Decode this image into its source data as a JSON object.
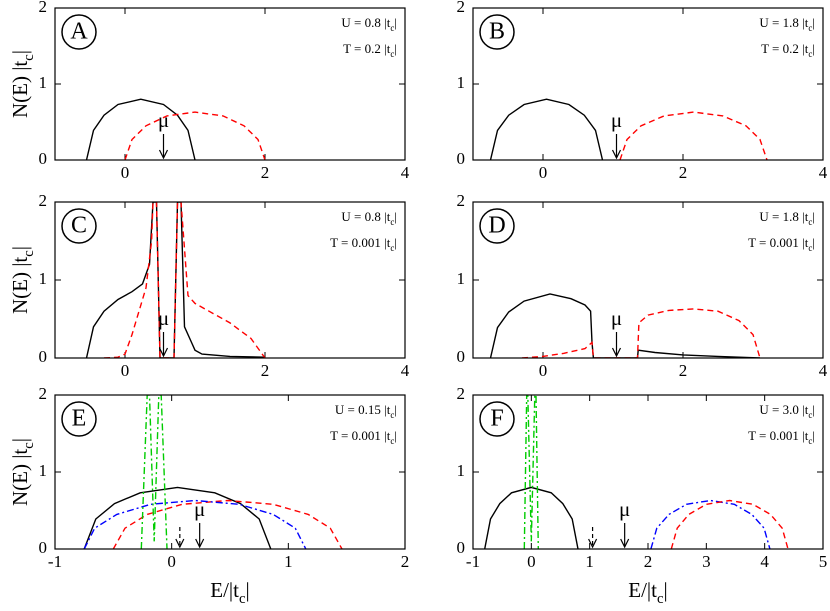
{
  "chart_data": [
    {
      "type": "line",
      "panel": "A",
      "xlim": [
        -1,
        4
      ],
      "xticks": [
        0,
        2,
        4
      ],
      "ylim": [
        0,
        2
      ],
      "yticks": [
        0,
        1,
        2
      ],
      "ylabel": {
        "text": "N(E) |t",
        "sub": "c",
        "end": "|"
      },
      "annotations": [
        {
          "text": "U = 0.8 |t",
          "sub": "c",
          "end": "|"
        },
        {
          "text": "T = 0.2 |t",
          "sub": "c",
          "end": "|"
        }
      ],
      "arrows": [
        0.55
      ],
      "mu_label": "μ",
      "series": [
        {
          "color": "#000000",
          "dash": "solid",
          "x": [
            -0.55,
            -0.45,
            -0.3,
            -0.1,
            0.225,
            0.55,
            0.75,
            0.9,
            1.0
          ],
          "values": [
            0,
            0.39,
            0.59,
            0.73,
            0.8,
            0.73,
            0.59,
            0.39,
            0
          ]
        },
        {
          "color": "#ff0000",
          "dash": "dashed",
          "x": [
            0,
            0.1,
            0.3,
            0.6,
            1.0,
            1.4,
            1.7,
            1.9,
            2.0
          ],
          "values": [
            0,
            0.27,
            0.45,
            0.58,
            0.63,
            0.58,
            0.45,
            0.27,
            0
          ]
        }
      ]
    },
    {
      "type": "line",
      "panel": "B",
      "xlim": [
        -1,
        4
      ],
      "xticks": [
        0,
        2,
        4
      ],
      "ylim": [
        0,
        2
      ],
      "yticks": [
        0,
        1,
        2
      ],
      "annotations": [
        {
          "text": "U = 1.8 |t",
          "sub": "c",
          "end": "|"
        },
        {
          "text": "T = 0.2 |t",
          "sub": "c",
          "end": "|"
        }
      ],
      "arrows": [
        1.05
      ],
      "mu_label": "μ",
      "series": [
        {
          "color": "#000000",
          "dash": "solid",
          "x": [
            -0.75,
            -0.65,
            -0.49,
            -0.27,
            0.05,
            0.37,
            0.59,
            0.75,
            0.85
          ],
          "values": [
            0,
            0.39,
            0.59,
            0.73,
            0.8,
            0.73,
            0.59,
            0.39,
            0
          ]
        },
        {
          "color": "#ff0000",
          "dash": "dashed",
          "x": [
            1.1,
            1.2,
            1.4,
            1.73,
            2.15,
            2.57,
            2.9,
            3.1,
            3.2
          ],
          "values": [
            0,
            0.27,
            0.45,
            0.58,
            0.63,
            0.58,
            0.45,
            0.27,
            0
          ]
        }
      ]
    },
    {
      "type": "line",
      "panel": "C",
      "xlim": [
        -1,
        4
      ],
      "xticks": [
        0,
        2,
        4
      ],
      "ylim": [
        0,
        2
      ],
      "yticks": [
        0,
        1,
        2
      ],
      "ylabel": {
        "text": "N(E) |t",
        "sub": "c",
        "end": "|"
      },
      "annotations": [
        {
          "text": "U = 0.8 |t",
          "sub": "c",
          "end": "|"
        },
        {
          "text": "T = 0.001 |t",
          "sub": "c",
          "end": "|"
        }
      ],
      "arrows": [
        0.55
      ],
      "mu_label": "μ",
      "series": [
        {
          "color": "#000000",
          "dash": "solid",
          "x": [
            -0.55,
            -0.45,
            -0.3,
            -0.1,
            0.1,
            0.25,
            0.35,
            0.4,
            0.45,
            0.5,
            0.7,
            0.75,
            0.8,
            0.85,
            0.95,
            1.0,
            1.1,
            1.5,
            2.0
          ],
          "values": [
            0,
            0.4,
            0.6,
            0.75,
            0.85,
            0.95,
            1.2,
            2,
            2,
            0,
            0,
            2,
            2,
            0.4,
            0.2,
            0.1,
            0.05,
            0.02,
            0.01
          ]
        },
        {
          "color": "#ff0000",
          "dash": "dashed",
          "x": [
            -0.3,
            -0.1,
            0,
            0.1,
            0.2,
            0.3,
            0.38,
            0.4,
            0.45,
            0.5,
            0.7,
            0.75,
            0.8,
            0.9,
            1.0,
            1.2,
            1.5,
            1.8,
            2.0
          ],
          "values": [
            0,
            0.01,
            0.05,
            0.3,
            0.6,
            0.9,
            1.5,
            2,
            2,
            0,
            0,
            2,
            2,
            0.8,
            0.7,
            0.6,
            0.45,
            0.25,
            0
          ]
        }
      ]
    },
    {
      "type": "line",
      "panel": "D",
      "xlim": [
        -1,
        4
      ],
      "xticks": [
        0,
        2,
        4
      ],
      "ylim": [
        0,
        2
      ],
      "yticks": [
        0,
        1,
        2
      ],
      "annotations": [
        {
          "text": "U = 1.8 |t",
          "sub": "c",
          "end": "|"
        },
        {
          "text": "T = 0.001 |t",
          "sub": "c",
          "end": "|"
        }
      ],
      "arrows": [
        1.05
      ],
      "mu_label": "μ",
      "series": [
        {
          "color": "#000000",
          "dash": "solid",
          "x": [
            -0.75,
            -0.65,
            -0.49,
            -0.27,
            0.1,
            0.4,
            0.6,
            0.68,
            0.7,
            0.72,
            1.35,
            1.36,
            1.6,
            2.0,
            2.5,
            3.1
          ],
          "values": [
            0,
            0.39,
            0.59,
            0.73,
            0.82,
            0.76,
            0.68,
            0.6,
            0.2,
            0,
            0,
            0.1,
            0.07,
            0.04,
            0.02,
            0
          ]
        },
        {
          "color": "#ff0000",
          "dash": "dashed",
          "x": [
            -0.3,
            0,
            0.3,
            0.6,
            0.7,
            0.72,
            1.35,
            1.37,
            1.5,
            1.8,
            2.15,
            2.5,
            2.8,
            3.0,
            3.1
          ],
          "values": [
            0,
            0.02,
            0.06,
            0.12,
            0.2,
            0,
            0,
            0.45,
            0.55,
            0.61,
            0.63,
            0.6,
            0.48,
            0.3,
            0
          ]
        }
      ]
    },
    {
      "type": "line",
      "panel": "E",
      "xlim": [
        -1,
        2
      ],
      "xticks": [
        -1,
        0,
        1,
        2
      ],
      "ylim": [
        0,
        2
      ],
      "yticks": [
        0,
        1,
        2
      ],
      "ylabel": {
        "text": "N(E) |t",
        "sub": "c",
        "end": "|"
      },
      "xlabel": {
        "text": "E/|t",
        "sub": "c",
        "end": "|"
      },
      "annotations": [
        {
          "text": "U = 0.15 |t",
          "sub": "c",
          "end": "|"
        },
        {
          "text": "T = 0.001 |t",
          "sub": "c",
          "end": "|"
        }
      ],
      "arrows": [
        0.07,
        0.24
      ],
      "mu_label": "μ",
      "series": [
        {
          "color": "#000000",
          "dash": "solid",
          "x": [
            -0.75,
            -0.65,
            -0.49,
            -0.27,
            0.05,
            0.37,
            0.59,
            0.75,
            0.85
          ],
          "values": [
            0,
            0.39,
            0.59,
            0.73,
            0.8,
            0.73,
            0.59,
            0.39,
            0
          ]
        },
        {
          "color": "#ff0000",
          "dash": "dashed",
          "x": [
            -0.5,
            -0.4,
            -0.21,
            0.09,
            0.48,
            0.87,
            1.17,
            1.36,
            1.46
          ],
          "values": [
            0,
            0.27,
            0.45,
            0.58,
            0.63,
            0.58,
            0.45,
            0.27,
            0
          ]
        },
        {
          "color": "#0000ff",
          "dash": "dashdot",
          "x": [
            -0.75,
            -0.66,
            -0.47,
            -0.18,
            0.2,
            0.58,
            0.87,
            1.06,
            1.15
          ],
          "values": [
            0,
            0.27,
            0.45,
            0.58,
            0.63,
            0.58,
            0.45,
            0.27,
            0
          ]
        },
        {
          "color": "#00cc00",
          "dash": "dashdot",
          "x": [
            -0.26,
            -0.21,
            -0.19,
            -0.15,
            -0.11,
            -0.09,
            -0.04
          ],
          "values": [
            0,
            2,
            2,
            0.1,
            2,
            2,
            0
          ]
        }
      ]
    },
    {
      "type": "line",
      "panel": "F",
      "xlim": [
        -1,
        5
      ],
      "xticks": [
        -1,
        0,
        1,
        2,
        3,
        4,
        5
      ],
      "ylim": [
        0,
        2
      ],
      "yticks": [
        0,
        1,
        2
      ],
      "xlabel": {
        "text": "E/|t",
        "sub": "c",
        "end": "|"
      },
      "annotations": [
        {
          "text": "U = 3.0 |t",
          "sub": "c",
          "end": "|"
        },
        {
          "text": "T = 0.001 |t",
          "sub": "c",
          "end": "|"
        }
      ],
      "arrows": [
        1.05,
        1.6
      ],
      "mu_label": "μ",
      "series": [
        {
          "color": "#000000",
          "dash": "solid",
          "x": [
            -0.8,
            -0.7,
            -0.54,
            -0.34,
            0,
            0.34,
            0.54,
            0.7,
            0.8
          ],
          "values": [
            0,
            0.39,
            0.59,
            0.73,
            0.8,
            0.73,
            0.59,
            0.39,
            0
          ]
        },
        {
          "color": "#0000ff",
          "dash": "dashdot",
          "x": [
            2.05,
            2.15,
            2.36,
            2.66,
            3.07,
            3.48,
            3.78,
            3.99,
            4.09
          ],
          "values": [
            0,
            0.27,
            0.45,
            0.58,
            0.63,
            0.58,
            0.45,
            0.27,
            0
          ]
        },
        {
          "color": "#ff0000",
          "dash": "dashed",
          "x": [
            2.4,
            2.5,
            2.7,
            3.0,
            3.4,
            3.8,
            4.1,
            4.3,
            4.4
          ],
          "values": [
            0,
            0.27,
            0.45,
            0.58,
            0.63,
            0.58,
            0.45,
            0.27,
            0
          ]
        },
        {
          "color": "#00cc00",
          "dash": "dashdot",
          "x": [
            -0.12,
            -0.08,
            -0.06,
            0,
            0.06,
            0.08,
            0.12
          ],
          "values": [
            0,
            2,
            2,
            0.1,
            2,
            2,
            0
          ]
        }
      ]
    }
  ]
}
